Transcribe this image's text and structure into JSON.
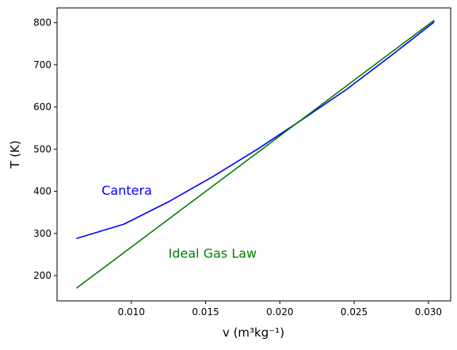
{
  "chart_data": {
    "type": "line",
    "xlabel": "v (m³kg⁻¹)",
    "ylabel": "T (K)",
    "xlim": [
      0.005,
      0.0315
    ],
    "ylim": [
      140,
      835
    ],
    "x_ticks": [
      0.01,
      0.015,
      0.02,
      0.025,
      0.03
    ],
    "x_tick_labels": [
      "0.010",
      "0.015",
      "0.020",
      "0.025",
      "0.030"
    ],
    "y_ticks": [
      200,
      300,
      400,
      500,
      600,
      700,
      800
    ],
    "y_tick_labels": [
      "200",
      "300",
      "400",
      "500",
      "600",
      "700",
      "800"
    ],
    "grid": false,
    "series": [
      {
        "name": "Cantera",
        "color": "#0000ff",
        "points": [
          [
            0.0063,
            288
          ],
          [
            0.0095,
            322
          ],
          [
            0.0125,
            375
          ],
          [
            0.0155,
            435
          ],
          [
            0.0185,
            500
          ],
          [
            0.0215,
            570
          ],
          [
            0.0245,
            642
          ],
          [
            0.0275,
            722
          ],
          [
            0.0304,
            802
          ]
        ]
      },
      {
        "name": "Ideal Gas Law",
        "color": "#008000",
        "points": [
          [
            0.0063,
            170
          ],
          [
            0.0304,
            806
          ]
        ]
      }
    ],
    "annotations": [
      {
        "text": "Cantera",
        "color": "#0000ff",
        "x": 0.008,
        "y": 403
      },
      {
        "text": "Ideal Gas Law",
        "color": "#008000",
        "x": 0.0125,
        "y": 254
      }
    ]
  }
}
